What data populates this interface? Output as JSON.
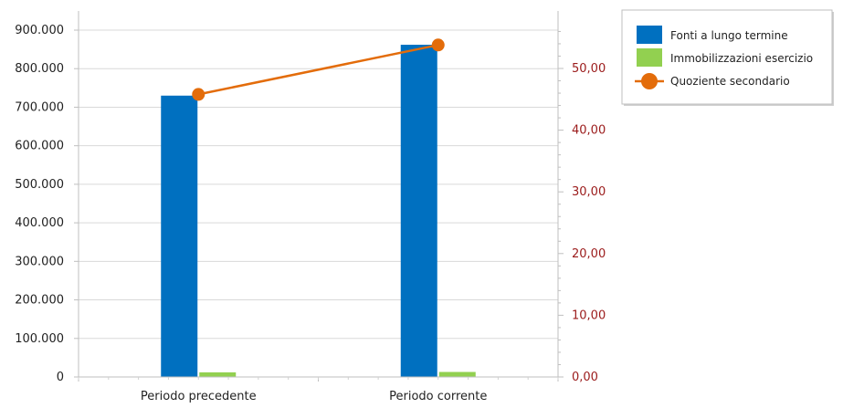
{
  "chart_data": {
    "type": "bar",
    "categories": [
      "Periodo precedente",
      "Periodo corrente"
    ],
    "series": [
      {
        "name": "Fonti a lungo termine",
        "type": "bar",
        "axis": "left",
        "color": "#0070C0",
        "values": [
          730000,
          862000
        ]
      },
      {
        "name": "Immobilizzazioni esercizio",
        "type": "bar",
        "axis": "left",
        "color": "#92D050",
        "values": [
          12000,
          13000
        ]
      },
      {
        "name": "Quoziente secondario",
        "type": "line",
        "axis": "right",
        "color": "#E36C0A",
        "values": [
          45.8,
          53.8
        ]
      }
    ],
    "y_left": {
      "min": 0,
      "max": 900000,
      "ticks": [
        0,
        100000,
        200000,
        300000,
        400000,
        500000,
        600000,
        700000,
        800000,
        900000
      ],
      "tick_labels": [
        "0",
        "100.000",
        "200.000",
        "300.000",
        "400.000",
        "500.000",
        "600.000",
        "700.000",
        "800.000",
        "900.000"
      ]
    },
    "y_right": {
      "min": 0,
      "max": 56,
      "ticks": [
        0,
        10,
        20,
        30,
        40,
        50
      ],
      "tick_labels": [
        "0,00",
        "10,00",
        "20,00",
        "30,00",
        "40,00",
        "50,00"
      ],
      "label_color": "#9B1B1B"
    },
    "grid": true,
    "legend_position": "top-right"
  }
}
